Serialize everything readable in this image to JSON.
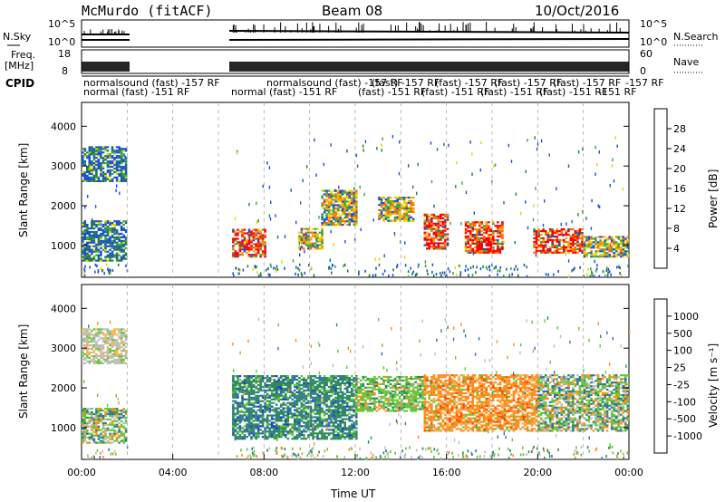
{
  "header": {
    "title_left": "McMurdo (fitACF)",
    "title_center": "Beam 08",
    "title_right": "10/Oct/2016"
  },
  "noise_panel": {
    "left_label": "N.Sky",
    "right_label": "N.Search",
    "left_ticks": [
      "10^5",
      "10^0"
    ],
    "right_ticks": [
      "10^5",
      "10^0"
    ]
  },
  "freq_panel": {
    "left_label_1": "Freq.",
    "left_label_2": "[MHz]",
    "right_label": "Nave",
    "left_ticks": [
      "18",
      "8"
    ],
    "right_ticks": [
      "60",
      "0"
    ]
  },
  "cpid": {
    "label": "CPID",
    "row1": [
      "normalsound (fast) -157 RF",
      "normalsound (fast) -157 RF",
      "(fast) -157 RF",
      "(fast) -157 RF",
      "(fast) -157 RF",
      "(fast) -157 RF",
      "-157 RF"
    ],
    "row2": [
      "normal (fast) -151 RF",
      "normal (fast) -151 RF",
      "(fast) -151 RF",
      "(fast) -151 RF",
      "(fast) -151 RF",
      "(fast) -151 RF",
      "-151 RF"
    ]
  },
  "chart_data": [
    {
      "type": "heatmap",
      "panel": "power",
      "ylabel": "Slant Range [km]",
      "yticks": [
        "1000",
        "2000",
        "3000",
        "4000"
      ],
      "ylim": [
        200,
        4600
      ],
      "colorbar_label": "Power [dB]",
      "colorbar_ticks": [
        "28",
        "24",
        "20",
        "16",
        "12",
        "8",
        "4"
      ],
      "colorbar_colors": [
        "#ff0000",
        "#ff6a00",
        "#ffa000",
        "#e6d600",
        "#3aa83a",
        "#1e7e3c",
        "#1a4fd6",
        "#0000ff"
      ],
      "echo_regions": [
        {
          "t": [
            0.0,
            2.0
          ],
          "r": [
            600,
            1600
          ],
          "level": "weak"
        },
        {
          "t": [
            0.0,
            2.0
          ],
          "r": [
            2600,
            3500
          ],
          "level": "weak"
        },
        {
          "t": [
            6.6,
            8.0
          ],
          "r": [
            700,
            1400
          ],
          "level": "strong"
        },
        {
          "t": [
            9.5,
            10.5
          ],
          "r": [
            900,
            1400
          ],
          "level": "medium"
        },
        {
          "t": [
            10.5,
            12.0
          ],
          "r": [
            1500,
            2400
          ],
          "level": "medium"
        },
        {
          "t": [
            13.0,
            14.5
          ],
          "r": [
            1600,
            2200
          ],
          "level": "medium"
        },
        {
          "t": [
            15.0,
            16.0
          ],
          "r": [
            900,
            1800
          ],
          "level": "strong"
        },
        {
          "t": [
            16.8,
            18.5
          ],
          "r": [
            800,
            1600
          ],
          "level": "strong"
        },
        {
          "t": [
            19.8,
            22.0
          ],
          "r": [
            800,
            1400
          ],
          "level": "strong"
        },
        {
          "t": [
            22.0,
            24.0
          ],
          "r": [
            700,
            1200
          ],
          "level": "medium"
        }
      ]
    },
    {
      "type": "heatmap",
      "panel": "velocity",
      "ylabel": "Slant Range [km]",
      "xlabel": "Time UT",
      "xticks": [
        "00:00",
        "04:00",
        "08:00",
        "12:00",
        "16:00",
        "20:00",
        "00:00"
      ],
      "xlim_hours": [
        0,
        24
      ],
      "yticks": [
        "1000",
        "2000",
        "3000",
        "4000"
      ],
      "ylim": [
        200,
        4600
      ],
      "colorbar_label": "Velocity [m s⁻¹]",
      "colorbar_ticks": [
        "1000",
        "500",
        "100",
        "25",
        "-25",
        "-100",
        "-500",
        "-1000"
      ],
      "colorbar_colors": [
        "#1a3fd6",
        "#2e6fb0",
        "#2f8a5a",
        "#5fc83a",
        "#bdbdbd",
        "#ffb347",
        "#ff8c1a",
        "#ff4a00",
        "#ff0000"
      ],
      "echo_regions": [
        {
          "t": [
            0.0,
            2.0
          ],
          "r": [
            600,
            1500
          ],
          "level": "mixed"
        },
        {
          "t": [
            0.0,
            2.0
          ],
          "r": [
            2600,
            3500
          ],
          "level": "gray"
        },
        {
          "t": [
            6.6,
            12.0
          ],
          "r": [
            700,
            2300
          ],
          "level": "positive"
        },
        {
          "t": [
            12.0,
            15.0
          ],
          "r": [
            1400,
            2300
          ],
          "level": "green"
        },
        {
          "t": [
            15.0,
            20.0
          ],
          "r": [
            900,
            2300
          ],
          "level": "negative"
        },
        {
          "t": [
            20.0,
            24.0
          ],
          "r": [
            900,
            2300
          ],
          "level": "mixed"
        }
      ]
    }
  ]
}
